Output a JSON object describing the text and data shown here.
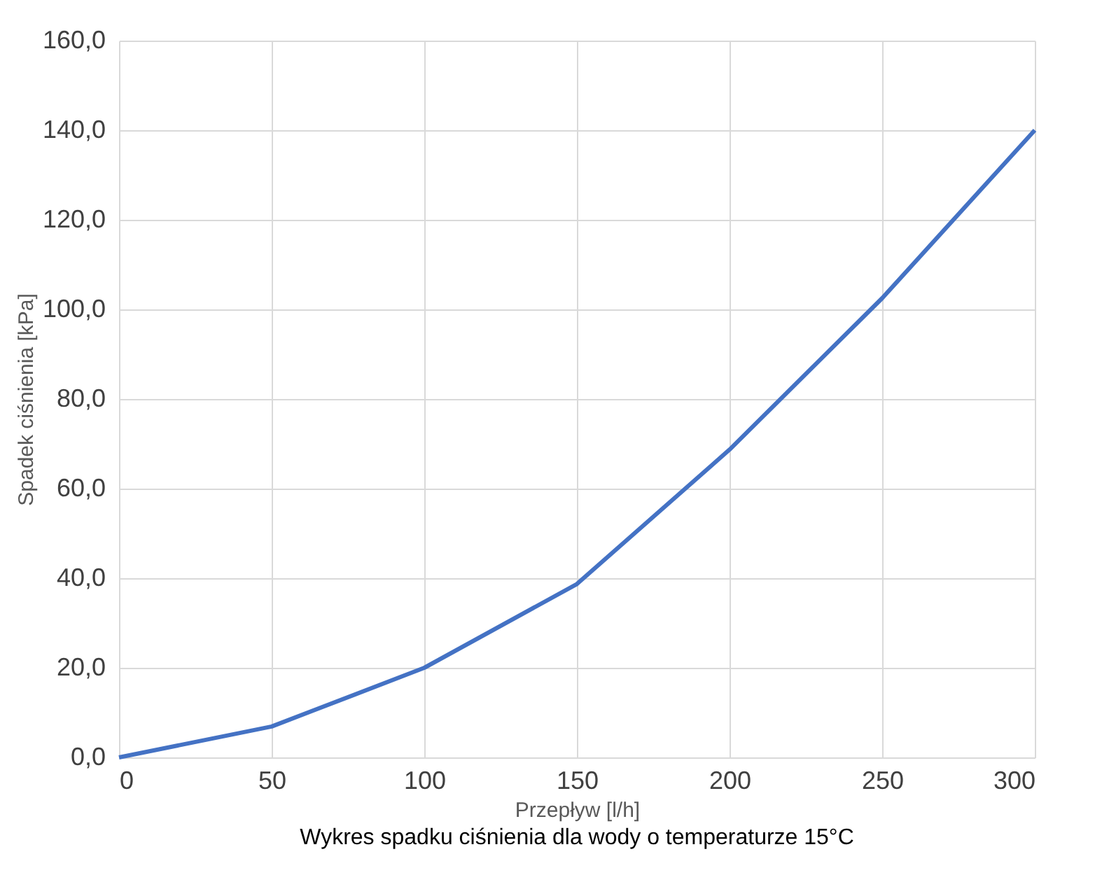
{
  "chart_data": {
    "type": "line",
    "xlabel": "Przepływ [l/h]",
    "ylabel": "Spadek ciśnienia [kPa]",
    "x": [
      0,
      50,
      100,
      150,
      200,
      250,
      300
    ],
    "series": [
      {
        "color": "#4472c4",
        "values": [
          0,
          6.9,
          20,
          38.7,
          68.7,
          102.5,
          140
        ]
      }
    ],
    "xlim": [
      0,
      300
    ],
    "xticks": [
      0,
      50,
      100,
      150,
      200,
      250,
      300
    ],
    "ylim": [
      0,
      160
    ],
    "yticks": [
      {
        "value": 0,
        "label": "0,0"
      },
      {
        "value": 20,
        "label": "20,0"
      },
      {
        "value": 40,
        "label": "40,0"
      },
      {
        "value": 60,
        "label": "60,0"
      },
      {
        "value": 80,
        "label": "80,0"
      },
      {
        "value": 100,
        "label": "100,0"
      },
      {
        "value": 120,
        "label": "120,0"
      },
      {
        "value": 140,
        "label": "140,0"
      },
      {
        "value": 160,
        "label": "160,0"
      }
    ],
    "grid": true,
    "legend": false,
    "marker": "none",
    "line_style": "solid",
    "annotations": [
      "Wykres spadku ciśnienia dla wody o temperaturze 15°C"
    ]
  }
}
